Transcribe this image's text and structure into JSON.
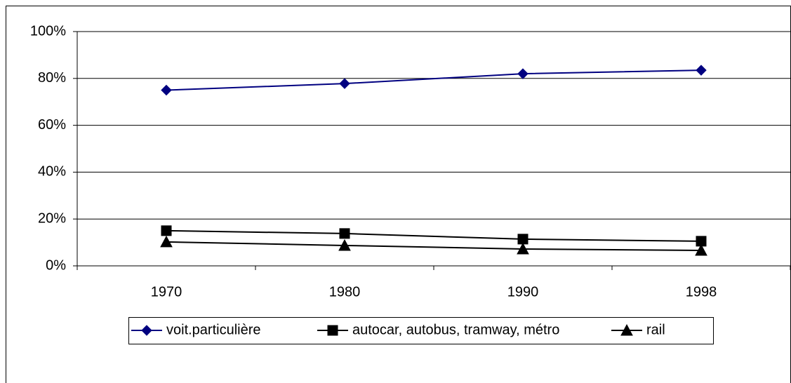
{
  "chart_data": {
    "type": "line",
    "categories": [
      "1970",
      "1980",
      "1990",
      "1998"
    ],
    "series": [
      {
        "name": "voit.particulière",
        "color": "#000080",
        "marker": "diamond",
        "values": [
          75,
          77.8,
          82,
          83.5
        ]
      },
      {
        "name": "autocar, autobus, tramway, métro",
        "color": "#000000",
        "marker": "square",
        "values": [
          15,
          13.8,
          11.4,
          10.5
        ]
      },
      {
        "name": "rail",
        "color": "#000000",
        "marker": "triangle",
        "values": [
          10.2,
          8.7,
          7.2,
          6.6
        ]
      }
    ],
    "ylim": [
      0,
      100
    ],
    "yticks": [
      {
        "value": 0,
        "label": "0%"
      },
      {
        "value": 20,
        "label": "20%"
      },
      {
        "value": 40,
        "label": "40%"
      },
      {
        "value": 60,
        "label": "60%"
      },
      {
        "value": 80,
        "label": "80%"
      },
      {
        "value": 100,
        "label": "100%"
      }
    ],
    "grid": true,
    "legend": "bottom"
  }
}
